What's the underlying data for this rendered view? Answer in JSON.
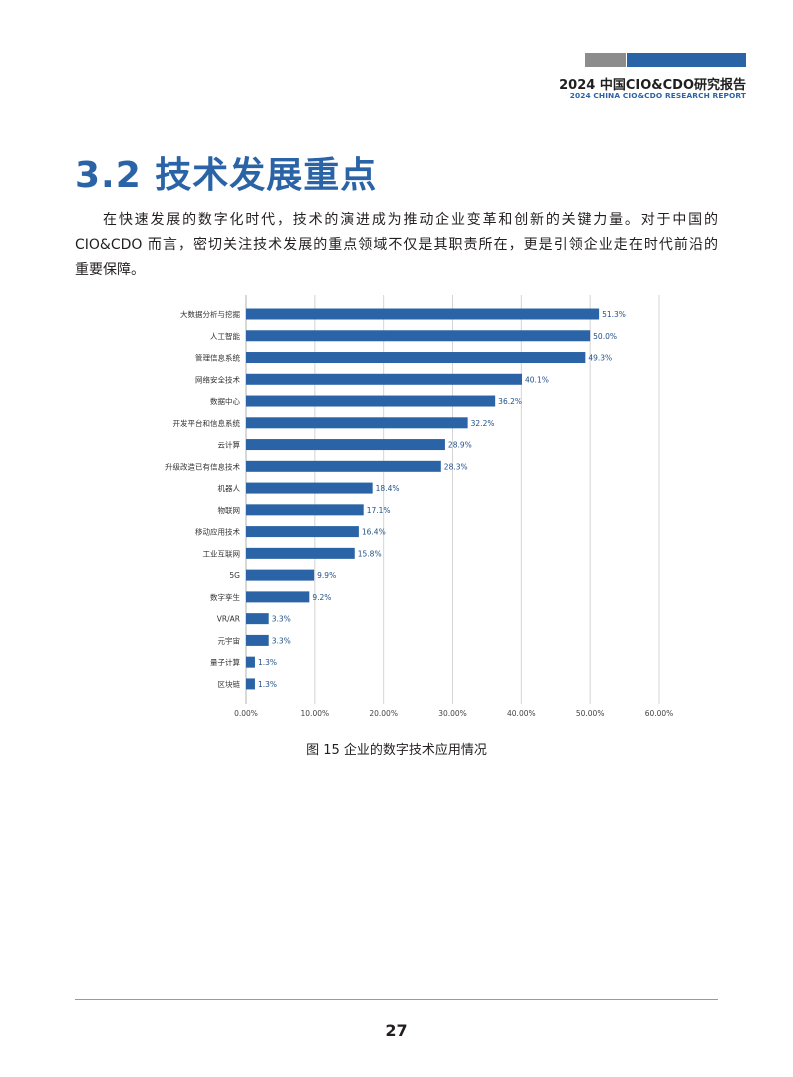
{
  "header": {
    "title": "2024 中国CIO&CDO研究报告",
    "subtitle": "2024 CHINA CIO&CDO RESEARCH REPORT"
  },
  "section": {
    "title": "3.2 技术发展重点"
  },
  "paragraph": {
    "lines": [
      "在快速发展的数字化时代，技术的演进成为推动企业变革和创新的关键力量。对于中国的",
      "CIO&CDO 而言，密切关注技术发展的重点领域不仅是其职责所在，更是引领企业走在时代前沿的",
      "重要保障。"
    ]
  },
  "chart_data": {
    "type": "bar",
    "orientation": "horizontal",
    "categories": [
      "大数据分析与挖掘",
      "人工智能",
      "管理信息系统",
      "网络安全技术",
      "数据中心",
      "开发平台和信息系统",
      "云计算",
      "升级改造已有信息技术",
      "机器人",
      "物联网",
      "移动应用技术",
      "工业互联网",
      "5G",
      "数字孪生",
      "VR/AR",
      "元宇宙",
      "量子计算",
      "区块链"
    ],
    "values": [
      51.3,
      50.0,
      49.3,
      40.1,
      36.2,
      32.2,
      28.9,
      28.3,
      18.4,
      17.1,
      16.4,
      15.8,
      9.9,
      9.2,
      3.3,
      3.3,
      1.3,
      1.3
    ],
    "value_labels": [
      "51.3%",
      "50.0%",
      "49.3%",
      "40.1%",
      "36.2%",
      "32.2%",
      "28.9%",
      "28.3%",
      "18.4%",
      "17.1%",
      "16.4%",
      "15.8%",
      "9.9%",
      "9.2%",
      "3.3%",
      "3.3%",
      "1.3%",
      "1.3%"
    ],
    "xlim": [
      0,
      60
    ],
    "ticks": [
      0,
      10,
      20,
      30,
      40,
      50,
      60
    ],
    "tick_labels": [
      "0.00%",
      "10.00%",
      "20.00%",
      "30.00%",
      "40.00%",
      "50.00%",
      "60.00%"
    ],
    "grid": true,
    "bar_color": "#2a64a6",
    "title": "",
    "xlabel": "",
    "ylabel": ""
  },
  "caption": "图 15  企业的数字技术应用情况",
  "page_number": "27"
}
